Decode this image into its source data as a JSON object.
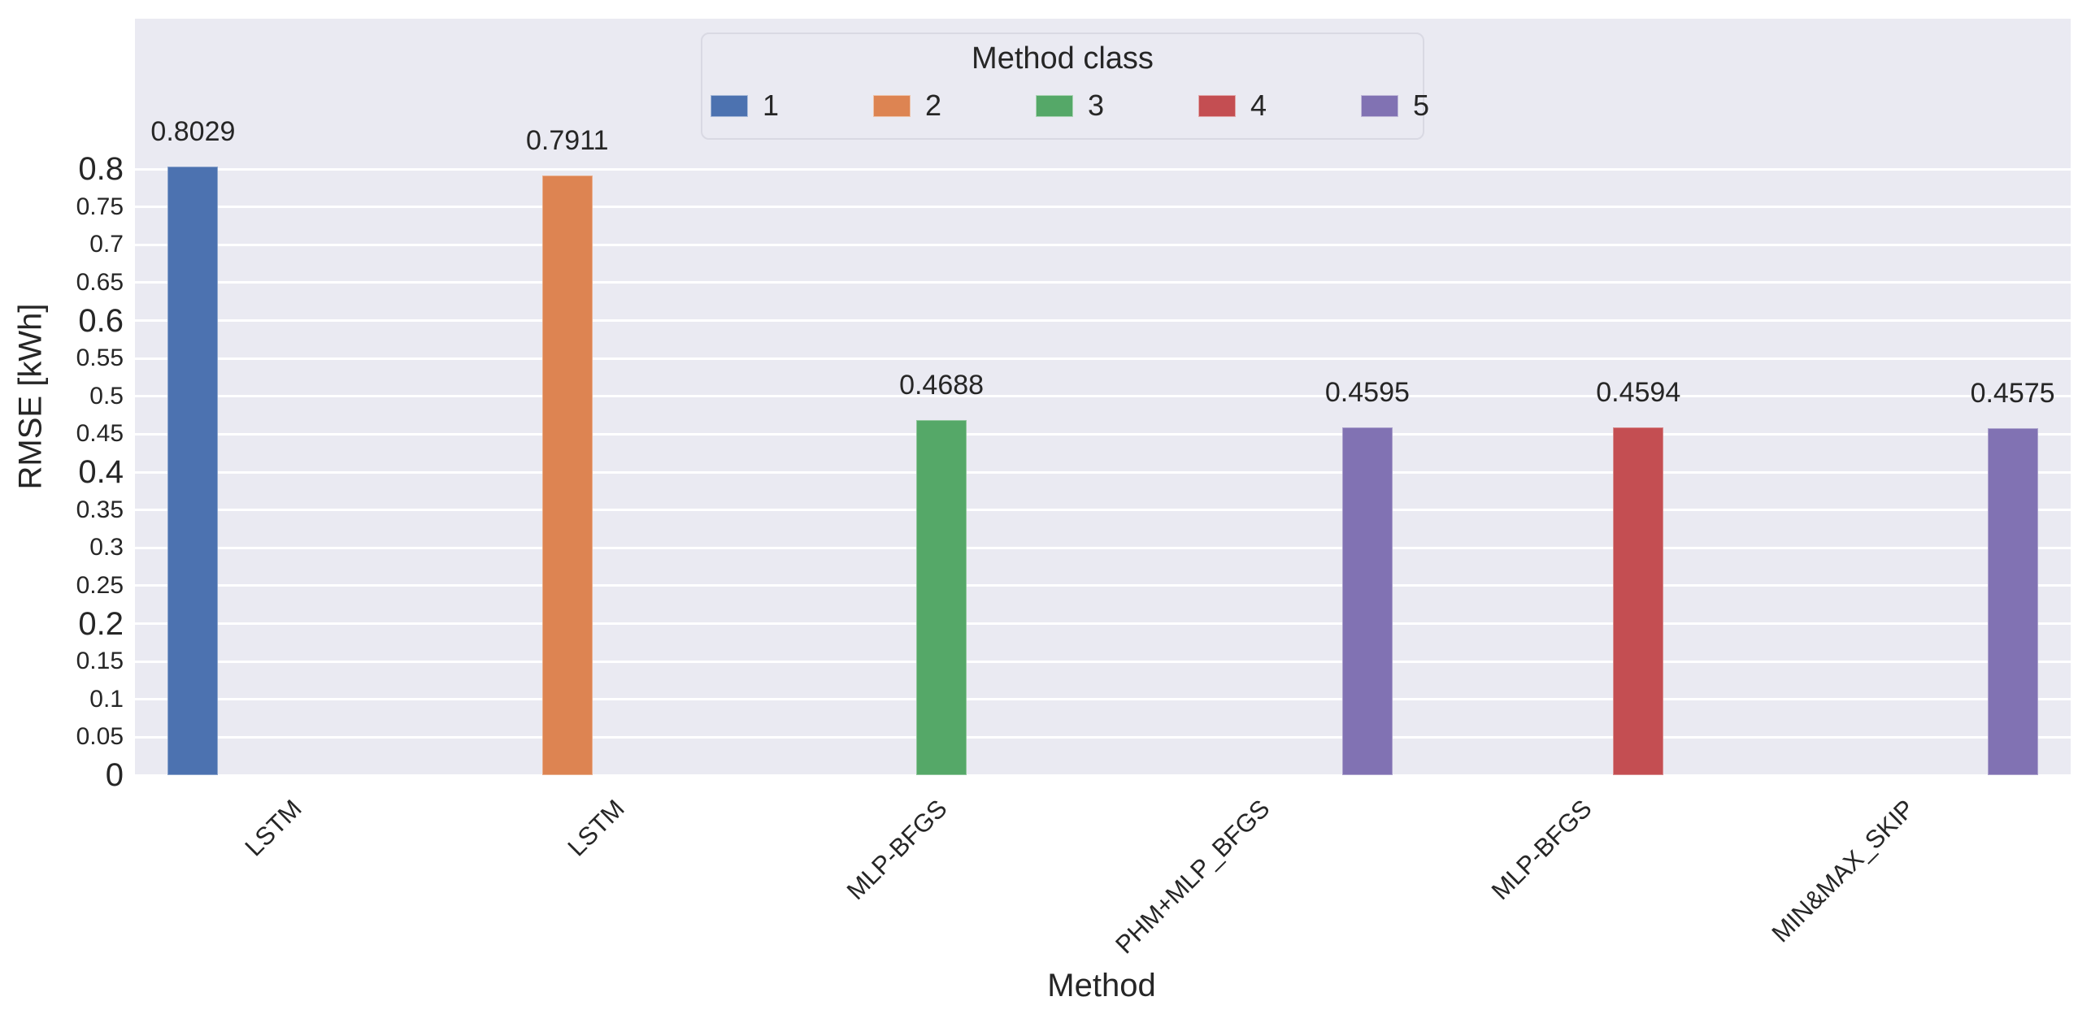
{
  "chart_data": {
    "type": "bar",
    "title": "",
    "xlabel": "Method",
    "ylabel": "RMSE [kWh]",
    "categories": [
      "LSTM",
      "LSTM",
      "MLP-BFGS",
      "PHM+MLP_BFGS",
      "MLP-BFGS",
      "MIN&MAX_SKIP"
    ],
    "values": [
      0.8029,
      0.7911,
      0.4688,
      0.4595,
      0.4594,
      0.4575
    ],
    "value_labels": [
      "0.8029",
      "0.7911",
      "0.4688",
      "0.4595",
      "0.4594",
      "0.4575"
    ],
    "method_class_per_bar": [
      1,
      2,
      3,
      5,
      4,
      5
    ],
    "ylim": [
      0,
      1.0
    ],
    "yticks": [
      {
        "label": "0",
        "value": 0.0,
        "major": true
      },
      {
        "label": "0.05",
        "value": 0.05,
        "major": false
      },
      {
        "label": "0.1",
        "value": 0.1,
        "major": false
      },
      {
        "label": "0.15",
        "value": 0.15,
        "major": false
      },
      {
        "label": "0.2",
        "value": 0.2,
        "major": true
      },
      {
        "label": "0.25",
        "value": 0.25,
        "major": false
      },
      {
        "label": "0.3",
        "value": 0.3,
        "major": false
      },
      {
        "label": "0.35",
        "value": 0.35,
        "major": false
      },
      {
        "label": "0.4",
        "value": 0.4,
        "major": true
      },
      {
        "label": "0.45",
        "value": 0.45,
        "major": false
      },
      {
        "label": "0.5",
        "value": 0.5,
        "major": false
      },
      {
        "label": "0.55",
        "value": 0.55,
        "major": false
      },
      {
        "label": "0.6",
        "value": 0.6,
        "major": true
      },
      {
        "label": "0.65",
        "value": 0.65,
        "major": false
      },
      {
        "label": "0.7",
        "value": 0.7,
        "major": false
      },
      {
        "label": "0.75",
        "value": 0.75,
        "major": false
      },
      {
        "label": "0.8",
        "value": 0.8,
        "major": true
      }
    ],
    "legend": {
      "title": "Method class",
      "position": "upper center",
      "entries": [
        {
          "label": "1",
          "color": "#4c72b0"
        },
        {
          "label": "2",
          "color": "#dd8452"
        },
        {
          "label": "3",
          "color": "#55a868"
        },
        {
          "label": "4",
          "color": "#c44e52"
        },
        {
          "label": "5",
          "color": "#8172b3"
        }
      ]
    },
    "colors": {
      "class_colors": {
        "1": "#4c72b0",
        "2": "#dd8452",
        "3": "#55a868",
        "4": "#c44e52",
        "5": "#8172b3"
      },
      "axes_background": "#eaeaf2",
      "grid": "#ffffff",
      "figure_background": "#ffffff",
      "text": "#262626"
    },
    "grid": "horizontal gridlines at every 0.05, no vertical gridlines"
  }
}
